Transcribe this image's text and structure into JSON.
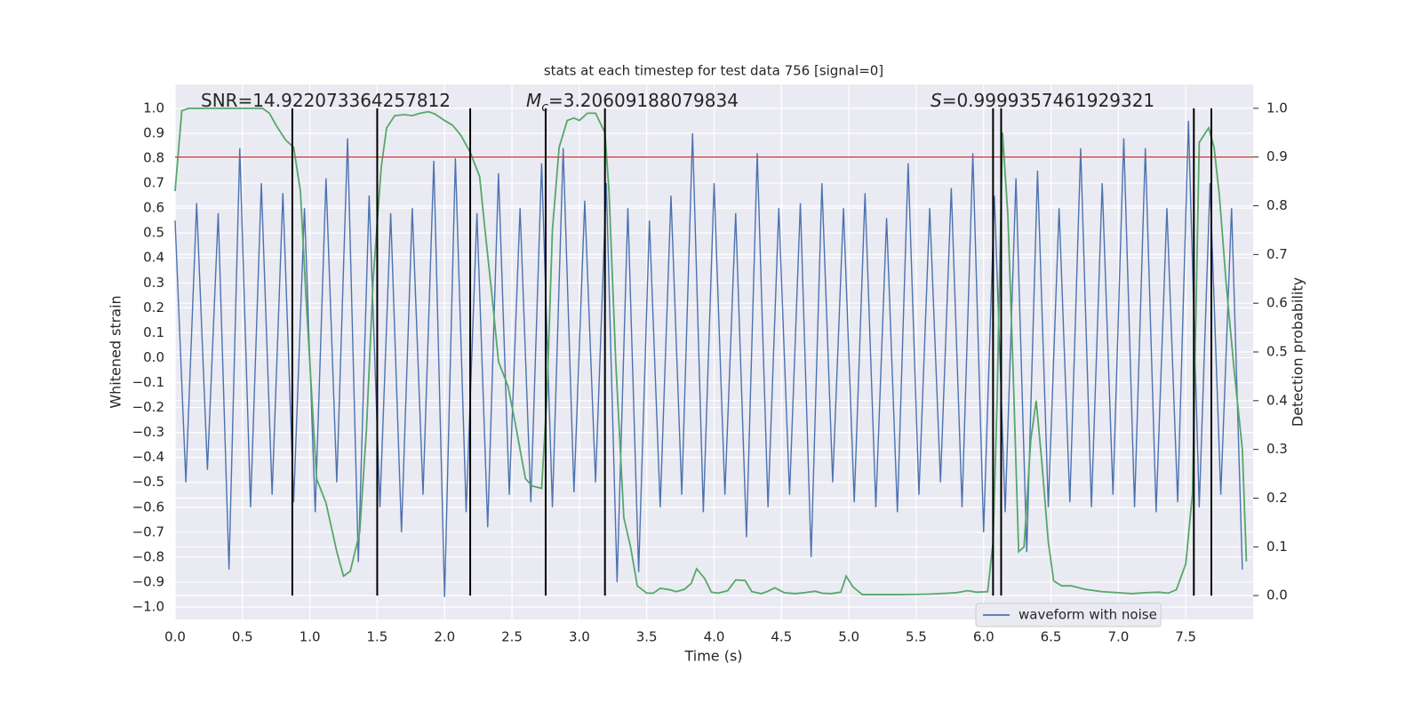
{
  "chart_data": {
    "type": "line",
    "title": "stats at each timestep for test data 756 [signal=0]",
    "xlabel": "Time (s)",
    "ylabel": "Whitened strain",
    "y2label": "Detection probability",
    "annotations": [
      {
        "text": "SNR=14.922073364257812"
      },
      {
        "symbol": "M",
        "subscript": "c",
        "text": "=3.20609188079834"
      },
      {
        "symbol": "S",
        "text": "=0.9999357461929321"
      }
    ],
    "xlim": [
      0,
      8
    ],
    "xticks": [
      {
        "value": 0,
        "label": "0.0"
      },
      0.5,
      {
        "value": 1,
        "label": "1.0"
      },
      1.5,
      {
        "value": 2,
        "label": "2.0"
      },
      2.5,
      {
        "value": 3,
        "label": "3.0"
      },
      3.5,
      {
        "value": 4,
        "label": "4.0"
      },
      4.5,
      {
        "value": 5,
        "label": "5.0"
      },
      5.5,
      {
        "value": 6,
        "label": "6.0"
      },
      6.5,
      {
        "value": 7,
        "label": "7.0"
      },
      7.5
    ],
    "ylim": [
      -1.05,
      1.096
    ],
    "yticks": [
      {
        "value": -1,
        "label": "−1.0"
      },
      {
        "value": -0.9,
        "label": "−0.9"
      },
      {
        "value": -0.8,
        "label": "−0.8"
      },
      {
        "value": -0.7,
        "label": "−0.7"
      },
      {
        "value": -0.6,
        "label": "−0.6"
      },
      {
        "value": -0.5,
        "label": "−0.5"
      },
      {
        "value": -0.4,
        "label": "−0.4"
      },
      {
        "value": -0.3,
        "label": "−0.3"
      },
      {
        "value": -0.2,
        "label": "−0.2"
      },
      {
        "value": -0.1,
        "label": "−0.1"
      },
      {
        "value": 0,
        "label": "0.0"
      },
      0.1,
      0.2,
      0.3,
      0.4,
      0.5,
      0.6,
      0.7,
      0.8,
      0.9,
      {
        "value": 1,
        "label": "1.0"
      }
    ],
    "y2lim": [
      -0.049,
      1.049
    ],
    "y2ticks": [
      {
        "value": 0,
        "label": "0.0"
      },
      0.1,
      0.2,
      0.3,
      0.4,
      0.5,
      0.6,
      0.7,
      0.8,
      0.9,
      {
        "value": 1,
        "label": "1.0"
      }
    ],
    "grid": true,
    "legend": "lower right",
    "series": [
      {
        "name": "waveform with noise",
        "color": "#4c72b0",
        "x": [
          0,
          0.08,
          0.16,
          0.24,
          0.32,
          0.4,
          0.48,
          0.56,
          0.64,
          0.72,
          0.8,
          0.88,
          0.96,
          1.04,
          1.12,
          1.2,
          1.28,
          1.36,
          1.44,
          1.52,
          1.6,
          1.68,
          1.76,
          1.84,
          1.92,
          2,
          2.08,
          2.16,
          2.24,
          2.32,
          2.4,
          2.48,
          2.56,
          2.64,
          2.72,
          2.8,
          2.88,
          2.96,
          3.04,
          3.12,
          3.2,
          3.28,
          3.36,
          3.44,
          3.52,
          3.6,
          3.68,
          3.76,
          3.84,
          3.92,
          4,
          4.08,
          4.16,
          4.24,
          4.32,
          4.4,
          4.48,
          4.56,
          4.64,
          4.72,
          4.8,
          4.88,
          4.96,
          5.04,
          5.12,
          5.2,
          5.28,
          5.36,
          5.44,
          5.52,
          5.6,
          5.68,
          5.76,
          5.84,
          5.92,
          6,
          6.08,
          6.16,
          6.24,
          6.32,
          6.4,
          6.48,
          6.56,
          6.64,
          6.72,
          6.8,
          6.88,
          6.96,
          7.04,
          7.12,
          7.2,
          7.28,
          7.36,
          7.44,
          7.52,
          7.6,
          7.68,
          7.76,
          7.84,
          7.92
        ],
        "values": [
          0.55,
          -0.5,
          0.62,
          -0.45,
          0.58,
          -0.85,
          0.84,
          -0.6,
          0.7,
          -0.55,
          0.66,
          -0.58,
          0.6,
          -0.62,
          0.72,
          -0.5,
          0.88,
          -0.82,
          0.65,
          -0.6,
          0.58,
          -0.7,
          0.6,
          -0.55,
          0.79,
          -0.96,
          0.8,
          -0.62,
          0.58,
          -0.68,
          0.74,
          -0.55,
          0.6,
          -0.58,
          0.78,
          -0.6,
          0.84,
          -0.54,
          0.63,
          -0.5,
          0.7,
          -0.9,
          0.6,
          -0.86,
          0.55,
          -0.6,
          0.65,
          -0.55,
          0.9,
          -0.62,
          0.7,
          -0.55,
          0.58,
          -0.72,
          0.82,
          -0.6,
          0.6,
          -0.55,
          0.62,
          -0.8,
          0.7,
          -0.5,
          0.6,
          -0.58,
          0.66,
          -0.6,
          0.56,
          -0.62,
          0.78,
          -0.55,
          0.6,
          -0.5,
          0.68,
          -0.6,
          0.82,
          -0.7,
          0.65,
          -0.62,
          0.72,
          -0.78,
          0.75,
          -0.6,
          0.6,
          -0.58,
          0.84,
          -0.6,
          0.7,
          -0.55,
          0.88,
          -0.6,
          0.84,
          -0.62,
          0.6,
          -0.58,
          0.95,
          -0.6,
          0.7,
          -0.55,
          0.6,
          -0.85
        ]
      },
      {
        "color": "#55a868",
        "axis": "y2",
        "x": [
          0,
          0.05,
          0.1,
          0.65,
          0.7,
          0.75,
          0.82,
          0.88,
          0.93,
          0.97,
          1.05,
          1.12,
          1.2,
          1.25,
          1.3,
          1.37,
          1.42,
          1.47,
          1.53,
          1.57,
          1.63,
          1.7,
          1.76,
          1.82,
          1.88,
          1.93,
          2,
          2.06,
          2.12,
          2.19,
          2.26,
          2.3,
          2.35,
          2.4,
          2.47,
          2.52,
          2.56,
          2.6,
          2.65,
          2.72,
          2.76,
          2.8,
          2.85,
          2.91,
          2.96,
          3,
          3.06,
          3.12,
          3.19,
          3.22,
          3.27,
          3.33,
          3.38,
          3.43,
          3.5,
          3.55,
          3.6,
          3.67,
          3.72,
          3.78,
          3.83,
          3.87,
          3.93,
          3.98,
          4.03,
          4.1,
          4.16,
          4.23,
          4.28,
          4.35,
          4.4,
          4.45,
          4.52,
          4.6,
          4.67,
          4.75,
          4.8,
          4.87,
          4.94,
          4.98,
          5.03,
          5.1,
          5.2,
          5.4,
          5.6,
          5.8,
          5.88,
          5.95,
          6.03,
          6.07,
          6.1,
          6.14,
          6.18,
          6.22,
          6.26,
          6.3,
          6.35,
          6.39,
          6.43,
          6.48,
          6.52,
          6.58,
          6.65,
          6.75,
          6.88,
          7,
          7.1,
          7.2,
          7.3,
          7.37,
          7.43,
          7.5,
          7.55,
          7.6,
          7.67,
          7.71,
          7.75,
          7.8,
          7.86,
          7.92,
          7.95
        ],
        "values": [
          0.83,
          0.995,
          1,
          1,
          0.99,
          0.965,
          0.935,
          0.92,
          0.83,
          0.62,
          0.24,
          0.19,
          0.09,
          0.04,
          0.05,
          0.13,
          0.34,
          0.65,
          0.88,
          0.96,
          0.985,
          0.987,
          0.985,
          0.99,
          0.993,
          0.988,
          0.975,
          0.965,
          0.945,
          0.91,
          0.86,
          0.75,
          0.62,
          0.48,
          0.43,
          0.36,
          0.3,
          0.24,
          0.225,
          0.22,
          0.41,
          0.75,
          0.92,
          0.975,
          0.98,
          0.975,
          0.99,
          0.99,
          0.95,
          0.83,
          0.48,
          0.16,
          0.1,
          0.02,
          0.005,
          0.005,
          0.015,
          0.012,
          0.008,
          0.013,
          0.025,
          0.055,
          0.035,
          0.007,
          0.005,
          0.01,
          0.032,
          0.031,
          0.008,
          0.004,
          0.009,
          0.016,
          0.006,
          0.004,
          0.006,
          0.009,
          0.005,
          0.004,
          0.007,
          0.04,
          0.018,
          0.002,
          0.002,
          0.002,
          0.003,
          0.006,
          0.01,
          0.007,
          0.008,
          0.11,
          0.4,
          0.95,
          0.78,
          0.45,
          0.09,
          0.1,
          0.32,
          0.4,
          0.28,
          0.11,
          0.03,
          0.02,
          0.02,
          0.013,
          0.008,
          0.006,
          0.004,
          0.006,
          0.007,
          0.005,
          0.012,
          0.065,
          0.21,
          0.93,
          0.96,
          0.92,
          0.82,
          0.64,
          0.46,
          0.3,
          0.07
        ]
      }
    ],
    "threshold": {
      "value": 0.9,
      "axis": "y2",
      "color": "#c44e52"
    },
    "vlines": {
      "color": "#000000",
      "x": [
        0.87,
        1.5,
        2.19,
        2.75,
        3.19,
        6.07,
        6.13,
        7.56,
        7.69
      ]
    }
  }
}
